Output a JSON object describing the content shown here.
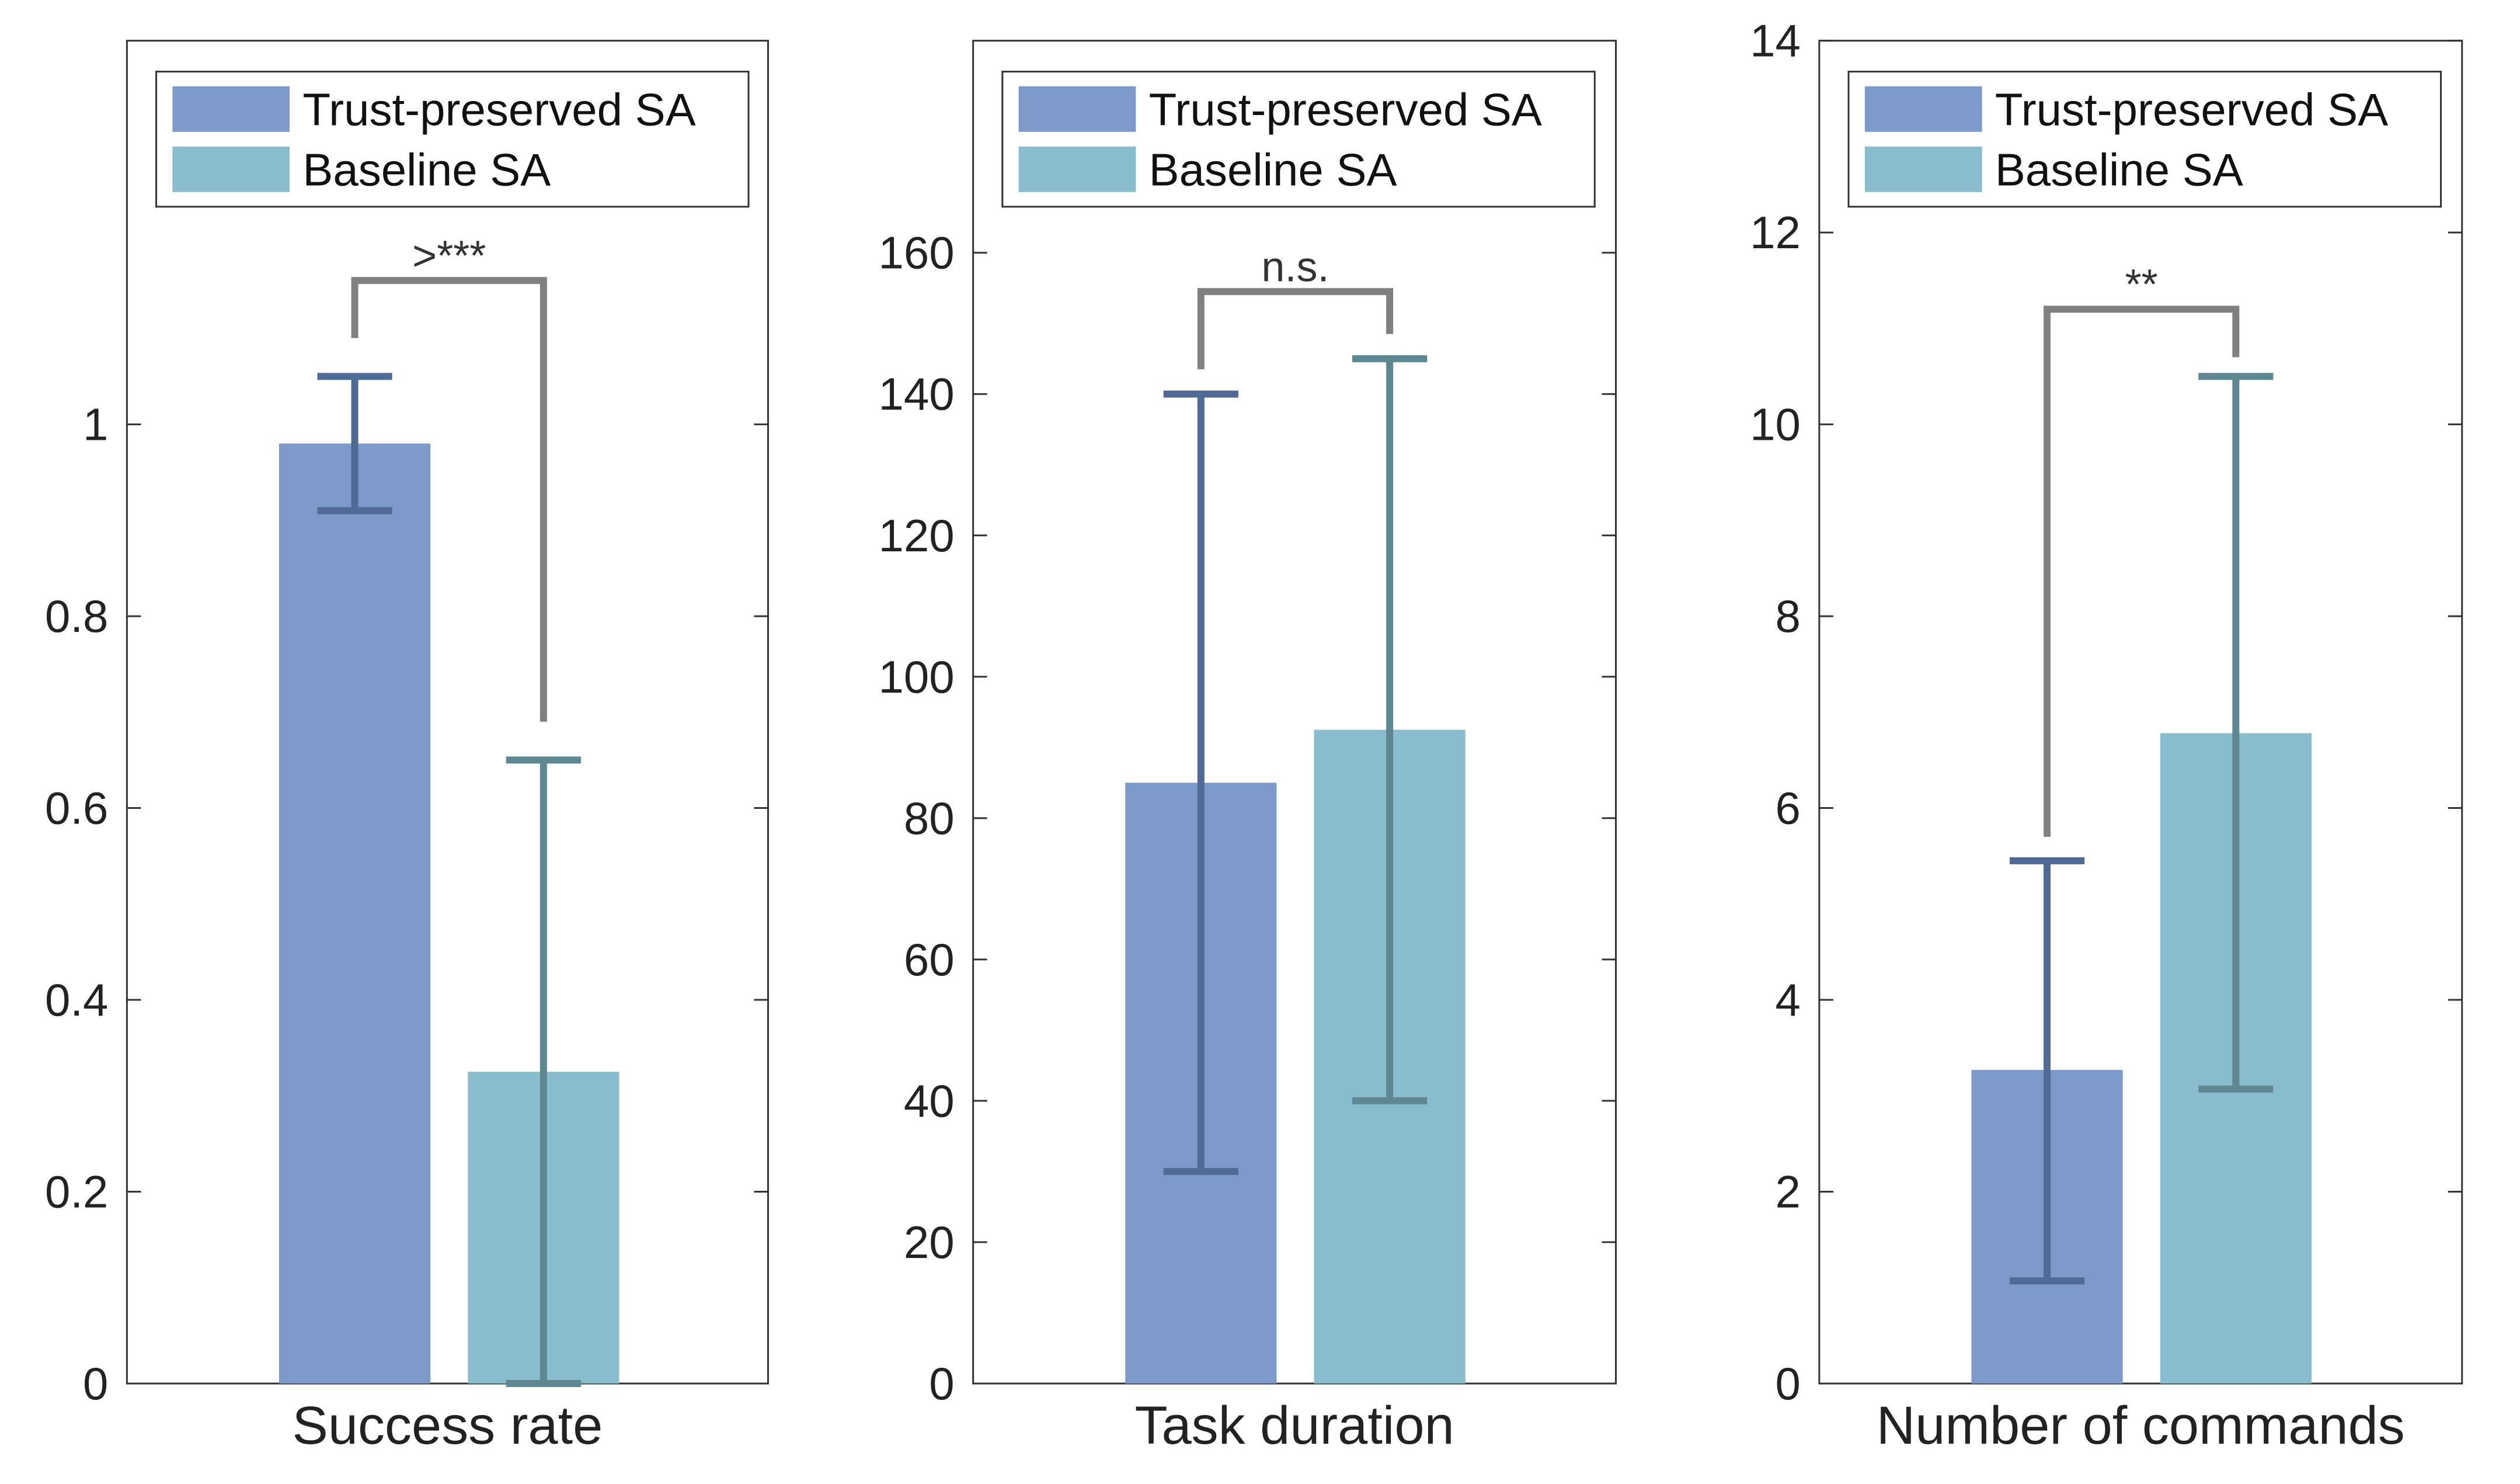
{
  "chart_data": [
    {
      "type": "bar",
      "xlabel": "Success rate",
      "ylabel": "",
      "ylim": [
        0,
        1.4
      ],
      "yticks": [
        "0",
        "0.2",
        "0.4",
        "0.6",
        "0.8",
        "1"
      ],
      "ytick_values": [
        0,
        0.2,
        0.4,
        0.6,
        0.8,
        1
      ],
      "legend": [
        "Trust-preserved SA",
        "Baseline SA"
      ],
      "legend_position": "top",
      "series": [
        {
          "name": "Trust-preserved SA",
          "value": 0.98,
          "err_low": 0.91,
          "err_high": 1.05
        },
        {
          "name": "Baseline SA",
          "value": 0.325,
          "err_low": 0.0,
          "err_high": 0.65
        }
      ],
      "significance": {
        "label": ">***",
        "left_y": 1.09,
        "top_y": 1.15,
        "right_y": 0.69
      }
    },
    {
      "type": "bar",
      "xlabel": "Task duration",
      "ylabel": "",
      "ylim": [
        0,
        190
      ],
      "yticks": [
        "0",
        "20",
        "40",
        "60",
        "80",
        "100",
        "120",
        "140",
        "160"
      ],
      "ytick_values": [
        0,
        20,
        40,
        60,
        80,
        100,
        120,
        140,
        160
      ],
      "legend": [
        "Trust-preserved SA",
        "Baseline SA"
      ],
      "legend_position": "top",
      "series": [
        {
          "name": "Trust-preserved SA",
          "value": 85,
          "err_low": 30,
          "err_high": 140
        },
        {
          "name": "Baseline SA",
          "value": 92.5,
          "err_low": 40,
          "err_high": 145
        }
      ],
      "significance": {
        "label": "n.s.",
        "left_y": 143.5,
        "top_y": 154.5,
        "right_y": 148.5
      }
    },
    {
      "type": "bar",
      "xlabel": "Number of commands",
      "ylabel": "",
      "ylim": [
        0,
        14
      ],
      "yticks": [
        "0",
        "2",
        "4",
        "6",
        "8",
        "10",
        "12",
        "14"
      ],
      "ytick_values": [
        0,
        2,
        4,
        6,
        8,
        10,
        12,
        14
      ],
      "legend": [
        "Trust-preserved SA",
        "Baseline SA"
      ],
      "legend_position": "top",
      "series": [
        {
          "name": "Trust-preserved SA",
          "value": 3.27,
          "err_low": 1.07,
          "err_high": 5.45
        },
        {
          "name": "Baseline SA",
          "value": 6.78,
          "err_low": 3.07,
          "err_high": 10.5
        }
      ],
      "significance": {
        "label": "**",
        "left_y": 5.7,
        "top_y": 11.2,
        "right_y": 10.7
      }
    }
  ],
  "colors": {
    "trust_bar": "#7c99c9",
    "baseline_bar": "#89bccc",
    "trust_err": "#4f6a94",
    "baseline_err": "#5e8791",
    "bracket": "#808080"
  }
}
